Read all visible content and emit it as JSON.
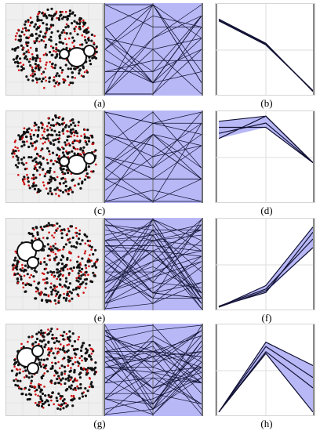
{
  "panels": [
    {
      "label": "(a)",
      "cluster_side": "right"
    },
    {
      "label": "(b)"
    },
    {
      "label": "(c)",
      "cluster_side": "right"
    },
    {
      "label": "(d)"
    },
    {
      "label": "(e)",
      "cluster_side": "left"
    },
    {
      "label": "(f)"
    },
    {
      "label": "(g)",
      "cluster_side": "left"
    },
    {
      "label": "(h)"
    }
  ],
  "colors": {
    "points_primary": "#111111",
    "points_secondary": "#cc1111",
    "scatter_background": "#efefef",
    "band_fill": "#b8b8f6",
    "line": "#111133"
  },
  "chart_data": [
    {
      "type": "line",
      "series": [
        {
          "values": [
            0.85,
            0.57,
            0.03
          ]
        },
        {
          "values": [
            0.86,
            0.58,
            0.02
          ]
        },
        {
          "values": [
            0.84,
            0.56,
            0.03
          ]
        }
      ],
      "ylim": [
        0,
        1
      ]
    },
    {
      "type": "area",
      "series": [
        {
          "values": [
            0.92,
            0.98,
            0.44
          ]
        },
        {
          "values": [
            0.72,
            0.98,
            0.44
          ]
        },
        {
          "values": [
            0.85,
            0.85,
            0.44
          ]
        },
        {
          "values": [
            0.78,
            0.9,
            0.44
          ]
        }
      ],
      "ylim": [
        0,
        1
      ]
    },
    {
      "type": "area",
      "series": [
        {
          "values": [
            0.01,
            0.26,
            0.94
          ]
        },
        {
          "values": [
            0.02,
            0.18,
            0.88
          ]
        },
        {
          "values": [
            0.01,
            0.2,
            0.7
          ]
        },
        {
          "values": [
            0.02,
            0.22,
            0.8
          ]
        }
      ],
      "ylim": [
        0,
        1
      ]
    },
    {
      "type": "area",
      "series": [
        {
          "values": [
            0.02,
            0.83,
            0.56
          ]
        },
        {
          "values": [
            0.02,
            0.72,
            0.3
          ]
        },
        {
          "values": [
            0.02,
            0.7,
            0.02
          ]
        },
        {
          "values": [
            0.02,
            0.78,
            0.42
          ]
        }
      ],
      "ylim": [
        0,
        1
      ]
    }
  ]
}
